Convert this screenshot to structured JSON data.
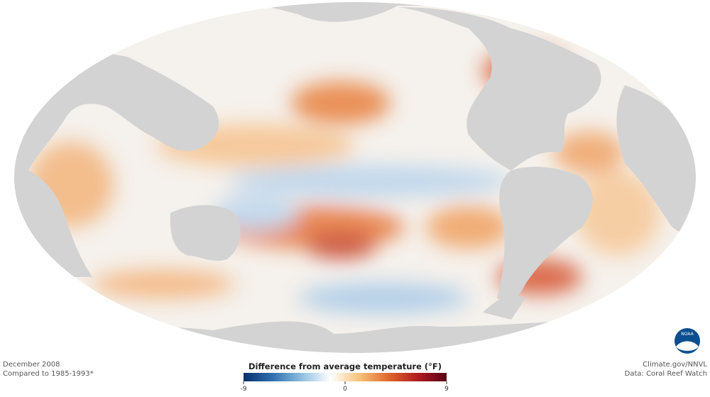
{
  "caption": {
    "date": "December 2008",
    "baseline": "Compared to 1985-1993*"
  },
  "colorbar": {
    "title": "Difference from average temperature (°F)",
    "lim": [
      -9,
      9
    ],
    "ticks": [
      -9,
      0,
      9
    ],
    "colors": [
      "#08306b",
      "#2f6fb0",
      "#8fbfe0",
      "#ffffff",
      "#f7c27a",
      "#e0672c",
      "#b01c20",
      "#5a0014"
    ]
  },
  "credits": {
    "source": "Climate.gov/NNVL",
    "data": "Data: Coral Reef Watch"
  },
  "logo": "NOAA"
}
